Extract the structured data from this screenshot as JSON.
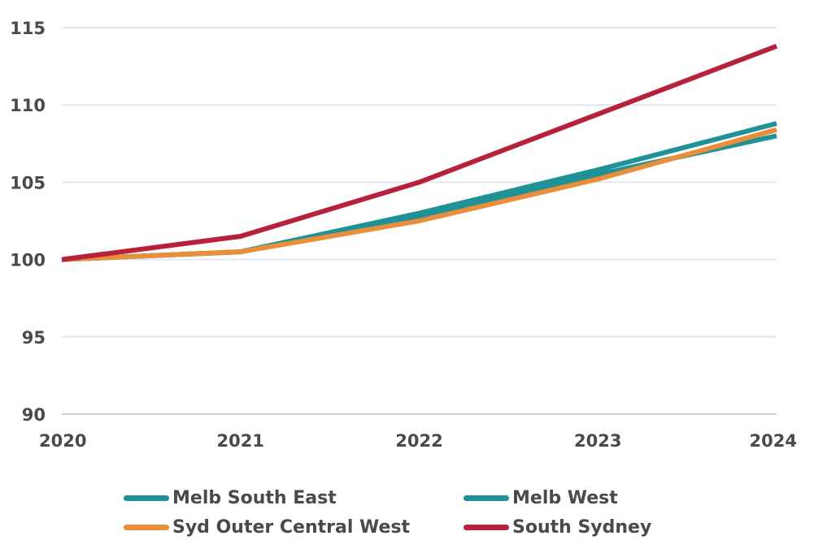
{
  "chart_data": {
    "type": "line",
    "x": [
      2020,
      2021,
      2022,
      2023,
      2024
    ],
    "ylim": [
      90,
      115
    ],
    "yticks": [
      90,
      95,
      100,
      105,
      110,
      115
    ],
    "xticks": [
      2020,
      2021,
      2022,
      2023,
      2024
    ],
    "grid": true,
    "legend_position": "bottom",
    "series": [
      {
        "name": "Melb South East",
        "color": "#1f9197",
        "values": [
          100,
          100.5,
          103.0,
          105.8,
          108.8
        ]
      },
      {
        "name": "Melb West",
        "color": "#1f9197",
        "values": [
          100,
          100.5,
          102.8,
          105.5,
          108.0
        ]
      },
      {
        "name": "Syd Outer Central West",
        "color": "#e98e3a",
        "values": [
          100,
          100.5,
          102.5,
          105.2,
          108.4
        ]
      },
      {
        "name": "South Sydney",
        "color": "#b8213b",
        "values": [
          100,
          101.5,
          105.0,
          109.4,
          113.8
        ]
      }
    ]
  }
}
